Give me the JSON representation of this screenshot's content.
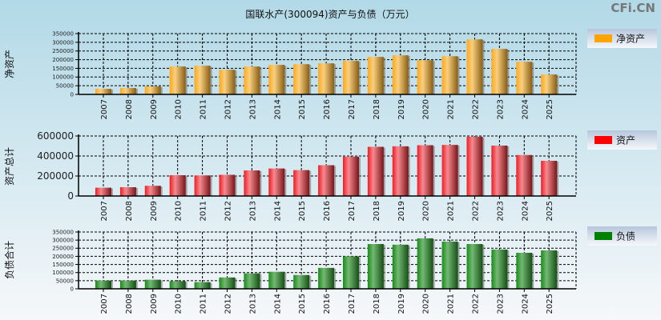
{
  "title": "国联水产(300094)资产与负债（万元）",
  "watermark": "CFi.CN",
  "colors": {
    "net_assets": "#ffa500",
    "assets": "#ff0000",
    "liabilities": "#008000"
  },
  "chart_data": [
    {
      "type": "bar",
      "ylabel": "净资产",
      "legend": "净资产",
      "legend_position": "right",
      "grid": true,
      "categories": [
        "2007",
        "2008",
        "2009",
        "2010",
        "2011",
        "2012",
        "2013",
        "2014",
        "2015",
        "2016",
        "2017",
        "2018",
        "2019",
        "2020",
        "2021",
        "2022",
        "2023",
        "2024",
        "2025"
      ],
      "values": [
        32000,
        37000,
        46000,
        161000,
        165000,
        142000,
        161000,
        170000,
        174000,
        179000,
        193000,
        216000,
        225000,
        197000,
        220000,
        317000,
        262000,
        188000,
        115000
      ],
      "ylim": [
        0,
        350000
      ],
      "yticks": [
        "0",
        "50000",
        "100000",
        "150000",
        "200000",
        "250000",
        "300000",
        "350000"
      ]
    },
    {
      "type": "bar",
      "ylabel": "资产总计",
      "legend": "资产",
      "legend_position": "right",
      "grid": true,
      "categories": [
        "2007",
        "2008",
        "2009",
        "2010",
        "2011",
        "2012",
        "2013",
        "2014",
        "2015",
        "2016",
        "2017",
        "2018",
        "2019",
        "2020",
        "2021",
        "2022",
        "2023",
        "2024",
        "2025"
      ],
      "values": [
        83000,
        88000,
        102000,
        208000,
        206000,
        212000,
        256000,
        275000,
        259000,
        308000,
        393000,
        492000,
        497000,
        508000,
        511000,
        593000,
        504000,
        410000,
        352000
      ],
      "ylim": [
        0,
        600000
      ],
      "yticks": [
        "0",
        "200000",
        "400000",
        "600000"
      ]
    },
    {
      "type": "bar",
      "ylabel": "负债合计",
      "legend": "负债",
      "legend_position": "right",
      "grid": true,
      "categories": [
        "2007",
        "2008",
        "2009",
        "2010",
        "2011",
        "2012",
        "2013",
        "2014",
        "2015",
        "2016",
        "2017",
        "2018",
        "2019",
        "2020",
        "2021",
        "2022",
        "2023",
        "2024",
        "2025"
      ],
      "values": [
        51000,
        51000,
        56000,
        47000,
        41000,
        70000,
        95000,
        105000,
        85000,
        129000,
        200000,
        276000,
        272000,
        311000,
        291000,
        276000,
        242000,
        222000,
        237000
      ],
      "ylim": [
        0,
        350000
      ],
      "yticks": [
        "0",
        "50000",
        "100000",
        "150000",
        "200000",
        "250000",
        "300000",
        "350000"
      ]
    }
  ]
}
